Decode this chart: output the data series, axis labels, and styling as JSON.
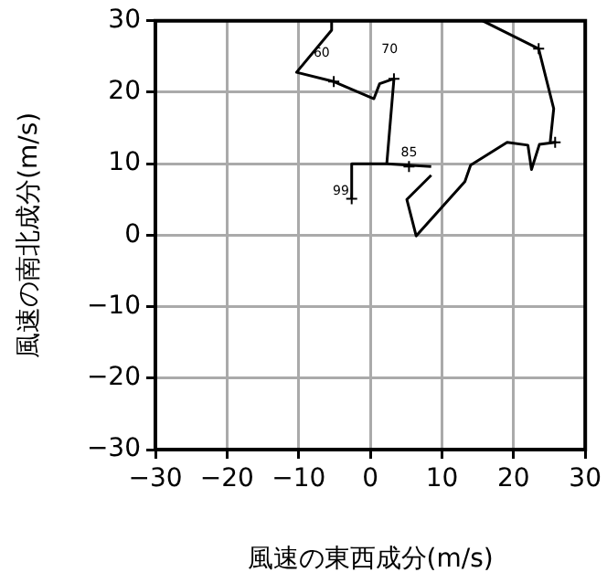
{
  "chart_data": {
    "type": "line",
    "xlabel": "風速の東西成分(m/s)",
    "ylabel": "風速の南北成分(m/s)",
    "xlim": [
      -30,
      30
    ],
    "ylim": [
      -30,
      30
    ],
    "xticks": [
      -30,
      -20,
      -10,
      0,
      10,
      20,
      30
    ],
    "yticks": [
      -30,
      -20,
      -10,
      0,
      10,
      20,
      30
    ],
    "grid": true,
    "legend": false,
    "marker": "none",
    "line_style": "solid",
    "series": [
      {
        "color": "#000000",
        "x": [
          -2.6,
          -2.6,
          2.3,
          8.5
        ],
        "values": [
          5.1,
          10,
          10,
          9.6
        ]
      },
      {
        "color": "#000000",
        "x": [
          2.3,
          3.3,
          1.3,
          0.5,
          -5.1,
          -10.3,
          -5.4,
          -5.4
        ],
        "values": [
          10,
          21.9,
          21.2,
          19.1,
          21.5,
          22.8,
          28.7,
          30
        ]
      },
      {
        "color": "#000000",
        "x": [
          15.7,
          23.5,
          25.6,
          25.1,
          25.8,
          23.6,
          22.5,
          22,
          19.1,
          14,
          13.2,
          6.4,
          5.1,
          8.5
        ],
        "values": [
          30,
          26.1,
          17.7,
          12.9,
          13,
          12.7,
          9.2,
          12.6,
          13,
          9.8,
          7.5,
          -0.1,
          5,
          8.4
        ]
      },
      {
        "type": "scatter",
        "marker": "cross",
        "color": "#000000",
        "x": [
          -2.6,
          3.3,
          -5.1,
          5.4,
          23.5,
          25.8
        ],
        "values": [
          5.1,
          21.9,
          21.5,
          9.6,
          26.1,
          13
        ]
      }
    ],
    "annotations": [
      {
        "text": "60",
        "x": -6.8,
        "y": 25.5
      },
      "70",
      {
        "text": "85",
        "x": 5.4,
        "y": 11.5
      },
      {
        "text": "99",
        "x": -4.1,
        "y": 6.2
      }
    ]
  }
}
